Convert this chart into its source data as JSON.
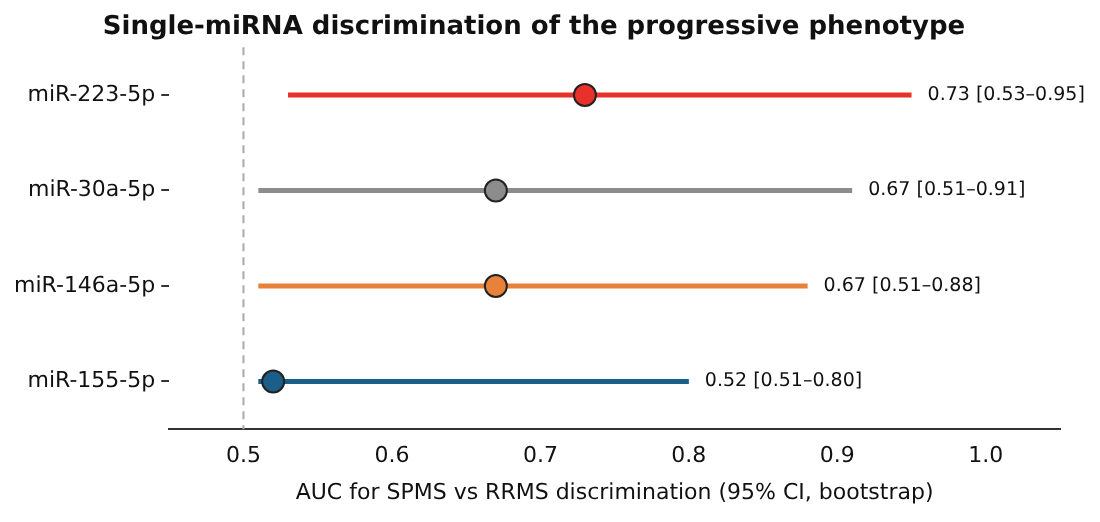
{
  "chart_data": {
    "type": "scatter",
    "orientation": "horizontal",
    "title": "Single-miRNA discrimination of the progressive phenotype",
    "xlabel": "AUC for SPMS vs RRMS discrimination (95% CI, bootstrap)",
    "categories": [
      "miR-223-5p",
      "miR-30a-5p",
      "miR-146a-5p",
      "miR-155-5p"
    ],
    "values": [
      0.73,
      0.67,
      0.67,
      0.52
    ],
    "errors": [
      [
        0.53,
        0.95
      ],
      [
        0.51,
        0.91
      ],
      [
        0.51,
        0.88
      ],
      [
        0.51,
        0.8
      ]
    ],
    "annotations": [
      {
        "text": "0.73 [0.53–0.95]",
        "x": 0.95,
        "y": "miR-223-5p"
      },
      {
        "text": "0.67 [0.51–0.91]",
        "x": 0.91,
        "y": "miR-30a-5p"
      },
      {
        "text": "0.67 [0.51–0.88]",
        "x": 0.88,
        "y": "miR-146a-5p"
      },
      {
        "text": "0.52 [0.51–0.80]",
        "x": 0.8,
        "y": "miR-155-5p"
      }
    ],
    "colors": [
      "#e8312a",
      "#8c8c8c",
      "#e8813a",
      "#1b5e8a"
    ],
    "xlim": [
      0.45,
      1.05
    ],
    "xticks": [
      0.5,
      0.6,
      0.7,
      0.8,
      0.9,
      {
        "value": 1,
        "label": "1.0"
      }
    ],
    "ref_lines": [
      {
        "axis": "x",
        "value": 0.5,
        "color": "#aaaaaa",
        "line_style": "dashed"
      }
    ],
    "marker": "circle",
    "grid": false,
    "legend": false
  }
}
